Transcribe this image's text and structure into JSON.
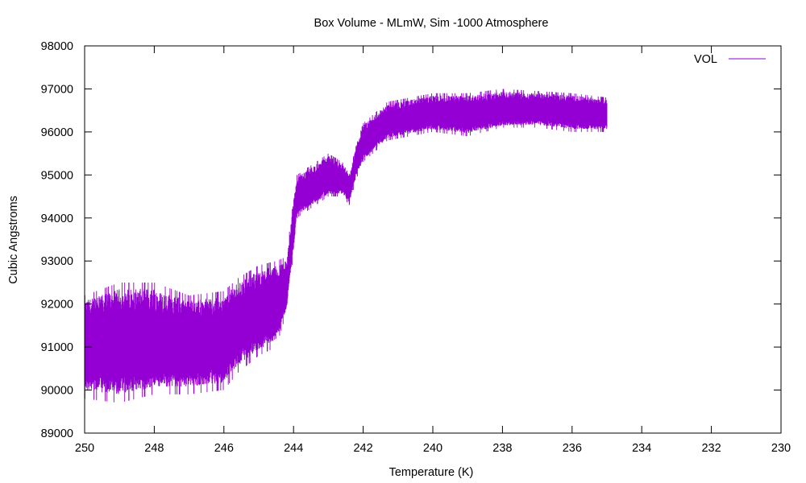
{
  "chart_data": {
    "type": "line",
    "title": "Box Volume - MLmW, Sim -1000 Atmosphere",
    "xlabel": "Temperature (K)",
    "ylabel": "Cubic Angstroms",
    "xlim": [
      250,
      230
    ],
    "ylim": [
      89000,
      98000
    ],
    "x_reversed": true,
    "x_ticks": [
      "250",
      "248",
      "246",
      "244",
      "242",
      "240",
      "238",
      "236",
      "234",
      "232",
      "230"
    ],
    "y_ticks": [
      "89000",
      "90000",
      "91000",
      "92000",
      "93000",
      "94000",
      "95000",
      "96000",
      "97000",
      "98000"
    ],
    "grid": false,
    "legend_position": "top-right",
    "series": [
      {
        "name": "VOL",
        "color": "#9400d3",
        "x_range": [
          250,
          235
        ],
        "points": [
          {
            "x": 250.0,
            "mean": 91000,
            "low": 89800,
            "high": 92200
          },
          {
            "x": 249.0,
            "mean": 91050,
            "low": 89700,
            "high": 92500
          },
          {
            "x": 248.0,
            "mean": 91000,
            "low": 89900,
            "high": 92500
          },
          {
            "x": 247.0,
            "mean": 91050,
            "low": 89900,
            "high": 92200
          },
          {
            "x": 246.0,
            "mean": 91150,
            "low": 90000,
            "high": 92300
          },
          {
            "x": 245.6,
            "mean": 91500,
            "low": 90400,
            "high": 92600
          },
          {
            "x": 245.0,
            "mean": 91800,
            "low": 90800,
            "high": 92900
          },
          {
            "x": 244.5,
            "mean": 91900,
            "low": 91000,
            "high": 93000
          },
          {
            "x": 244.2,
            "mean": 92300,
            "low": 91800,
            "high": 93100
          },
          {
            "x": 244.0,
            "mean": 93800,
            "low": 93200,
            "high": 94500
          },
          {
            "x": 243.9,
            "mean": 94500,
            "low": 94000,
            "high": 95000
          },
          {
            "x": 243.0,
            "mean": 94900,
            "low": 94500,
            "high": 95500
          },
          {
            "x": 242.6,
            "mean": 94900,
            "low": 94500,
            "high": 95300
          },
          {
            "x": 242.4,
            "mean": 94700,
            "low": 94300,
            "high": 95000
          },
          {
            "x": 242.2,
            "mean": 95300,
            "low": 94900,
            "high": 95700
          },
          {
            "x": 242.0,
            "mean": 95700,
            "low": 95300,
            "high": 96200
          },
          {
            "x": 241.3,
            "mean": 96200,
            "low": 95800,
            "high": 96700
          },
          {
            "x": 240.0,
            "mean": 96400,
            "low": 96000,
            "high": 96900
          },
          {
            "x": 239.0,
            "mean": 96350,
            "low": 95900,
            "high": 96900
          },
          {
            "x": 238.0,
            "mean": 96450,
            "low": 96100,
            "high": 97000
          },
          {
            "x": 237.0,
            "mean": 96500,
            "low": 96100,
            "high": 96950
          },
          {
            "x": 236.0,
            "mean": 96450,
            "low": 96000,
            "high": 96900
          },
          {
            "x": 235.0,
            "mean": 96400,
            "low": 96000,
            "high": 96800
          }
        ]
      }
    ]
  }
}
